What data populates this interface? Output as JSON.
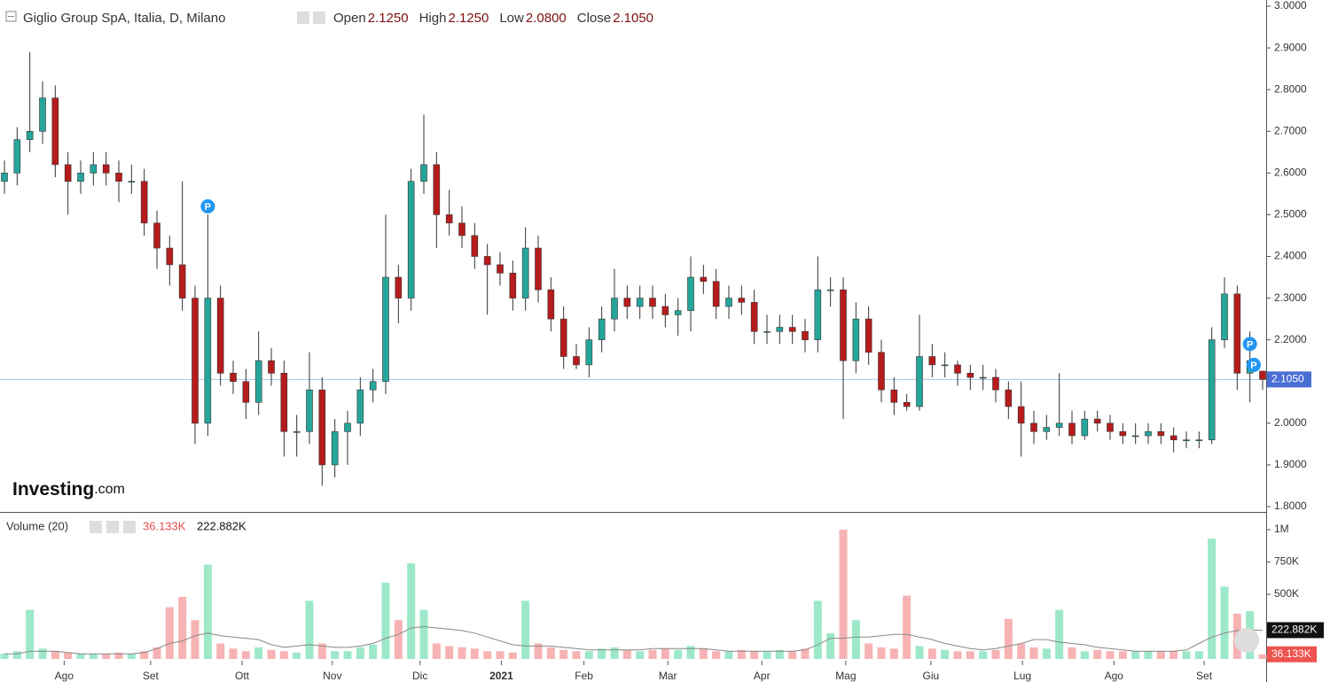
{
  "chart_data": [
    {
      "type": "candlestick",
      "title": "Giglio Group SpA, Italia, D, Milano",
      "ohlc_names": [
        "Open",
        "High",
        "Low",
        "Close"
      ],
      "last_labels": {
        "open": "2.1250",
        "high": "2.1250",
        "low": "2.0800",
        "close": "2.1050"
      },
      "marker_label": "P",
      "logo": "Investing",
      "logo_suffix": ".com",
      "up_color": "#26a69a",
      "down_color": "#b71c1c",
      "xlim": [
        0,
        99
      ],
      "xticks": [
        {
          "value": 4.7,
          "label": "Ago"
        },
        {
          "value": 11.5,
          "label": "Set"
        },
        {
          "value": 18.7,
          "label": "Ott"
        },
        {
          "value": 25.8,
          "label": "Nov"
        },
        {
          "value": 32.7,
          "label": "Dic"
        },
        {
          "value": 39.1,
          "label": "2021"
        },
        {
          "value": 45.6,
          "label": "Feb"
        },
        {
          "value": 52.2,
          "label": "Mar"
        },
        {
          "value": 59.6,
          "label": "Apr"
        },
        {
          "value": 66.2,
          "label": "Mag"
        },
        {
          "value": 72.9,
          "label": "Giu"
        },
        {
          "value": 80.1,
          "label": "Lug"
        },
        {
          "value": 87.3,
          "label": "Ago"
        },
        {
          "value": 94.4,
          "label": "Set"
        }
      ],
      "ylim": [
        1.8,
        3.0
      ],
      "yticks": [
        {
          "value": 1.8,
          "label": "1.8000"
        },
        {
          "value": 1.9,
          "label": "1.9000"
        },
        {
          "value": 2.0,
          "label": "2.0000"
        },
        {
          "value": 2.1,
          "label": "2.1000"
        },
        {
          "value": 2.2,
          "label": "2.2000"
        },
        {
          "value": 2.3,
          "label": "2.3000"
        },
        {
          "value": 2.4,
          "label": "2.4000"
        },
        {
          "value": 2.5,
          "label": "2.5000"
        },
        {
          "value": 2.6,
          "label": "2.6000"
        },
        {
          "value": 2.7,
          "label": "2.7000"
        },
        {
          "value": 2.8,
          "label": "2.8000"
        },
        {
          "value": 2.9,
          "label": "2.9000"
        },
        {
          "value": 3.0,
          "label": "3.0000"
        }
      ],
      "open": [
        2.58,
        2.6,
        2.68,
        2.7,
        2.78,
        2.62,
        2.58,
        2.6,
        2.62,
        2.6,
        2.58,
        2.58,
        2.48,
        2.42,
        2.38,
        2.3,
        2.0,
        2.3,
        2.12,
        2.1,
        2.05,
        2.15,
        2.12,
        1.98,
        1.98,
        2.08,
        1.9,
        1.98,
        2.0,
        2.08,
        2.1,
        2.35,
        2.3,
        2.58,
        2.62,
        2.5,
        2.48,
        2.45,
        2.4,
        2.38,
        2.36,
        2.3,
        2.42,
        2.32,
        2.25,
        2.16,
        2.14,
        2.2,
        2.25,
        2.3,
        2.28,
        2.3,
        2.28,
        2.26,
        2.27,
        2.35,
        2.34,
        2.28,
        2.3,
        2.29,
        2.22,
        2.22,
        2.23,
        2.22,
        2.2,
        2.32,
        2.32,
        2.15,
        2.25,
        2.17,
        2.08,
        2.05,
        2.04,
        2.16,
        2.14,
        2.14,
        2.12,
        2.11,
        2.11,
        2.08,
        2.04,
        2.0,
        1.98,
        1.99,
        2.0,
        1.97,
        2.01,
        2.0,
        1.98,
        1.97,
        1.97,
        1.98,
        1.97,
        1.96,
        1.96,
        1.96,
        2.2,
        2.31,
        2.12,
        2.125
      ],
      "high": [
        2.63,
        2.71,
        2.89,
        2.82,
        2.81,
        2.65,
        2.63,
        2.65,
        2.65,
        2.63,
        2.62,
        2.61,
        2.51,
        2.45,
        2.58,
        2.33,
        2.5,
        2.33,
        2.15,
        2.13,
        2.22,
        2.18,
        2.15,
        2.02,
        2.17,
        2.11,
        2.01,
        2.03,
        2.11,
        2.13,
        2.5,
        2.38,
        2.61,
        2.74,
        2.65,
        2.56,
        2.52,
        2.48,
        2.43,
        2.41,
        2.39,
        2.47,
        2.45,
        2.35,
        2.28,
        2.19,
        2.23,
        2.28,
        2.37,
        2.33,
        2.33,
        2.33,
        2.31,
        2.3,
        2.4,
        2.38,
        2.37,
        2.33,
        2.33,
        2.32,
        2.26,
        2.26,
        2.26,
        2.25,
        2.4,
        2.35,
        2.35,
        2.29,
        2.28,
        2.2,
        2.11,
        2.07,
        2.26,
        2.19,
        2.17,
        2.15,
        2.14,
        2.14,
        2.13,
        2.1,
        2.1,
        2.03,
        2.02,
        2.12,
        2.03,
        2.03,
        2.03,
        2.02,
        2.0,
        2.0,
        2.0,
        2.0,
        1.99,
        1.98,
        1.98,
        2.23,
        2.35,
        2.33,
        2.22,
        2.125
      ],
      "low": [
        2.55,
        2.57,
        2.65,
        2.67,
        2.59,
        2.5,
        2.55,
        2.57,
        2.57,
        2.53,
        2.55,
        2.45,
        2.37,
        2.33,
        2.27,
        1.95,
        1.97,
        2.09,
        2.07,
        2.01,
        2.02,
        2.09,
        1.92,
        1.92,
        1.95,
        1.85,
        1.87,
        1.9,
        1.97,
        2.05,
        2.07,
        2.24,
        2.27,
        2.55,
        2.42,
        2.45,
        2.42,
        2.37,
        2.26,
        2.33,
        2.27,
        2.27,
        2.29,
        2.22,
        2.13,
        2.13,
        2.11,
        2.17,
        2.22,
        2.25,
        2.25,
        2.25,
        2.23,
        2.21,
        2.22,
        2.31,
        2.25,
        2.25,
        2.26,
        2.19,
        2.19,
        2.19,
        2.19,
        2.17,
        2.17,
        2.28,
        2.01,
        2.12,
        2.14,
        2.05,
        2.02,
        2.03,
        2.03,
        2.11,
        2.11,
        2.09,
        2.08,
        2.08,
        2.05,
        2.01,
        1.92,
        1.95,
        1.96,
        1.97,
        1.95,
        1.96,
        1.98,
        1.96,
        1.95,
        1.95,
        1.95,
        1.95,
        1.93,
        1.94,
        1.94,
        1.95,
        2.18,
        2.08,
        2.05,
        2.08
      ],
      "close": [
        2.6,
        2.68,
        2.7,
        2.78,
        2.62,
        2.58,
        2.6,
        2.62,
        2.6,
        2.58,
        2.58,
        2.48,
        2.42,
        2.38,
        2.3,
        2.0,
        2.3,
        2.12,
        2.1,
        2.05,
        2.15,
        2.12,
        1.98,
        1.98,
        2.08,
        1.9,
        1.98,
        2.0,
        2.08,
        2.1,
        2.35,
        2.3,
        2.58,
        2.62,
        2.5,
        2.48,
        2.45,
        2.4,
        2.38,
        2.36,
        2.3,
        2.42,
        2.32,
        2.25,
        2.16,
        2.14,
        2.2,
        2.25,
        2.3,
        2.28,
        2.3,
        2.28,
        2.26,
        2.27,
        2.35,
        2.34,
        2.28,
        2.3,
        2.29,
        2.22,
        2.22,
        2.23,
        2.22,
        2.2,
        2.32,
        2.32,
        2.15,
        2.25,
        2.17,
        2.08,
        2.05,
        2.04,
        2.16,
        2.14,
        2.14,
        2.12,
        2.11,
        2.11,
        2.08,
        2.04,
        2.0,
        1.98,
        1.99,
        2.0,
        1.97,
        2.01,
        2.0,
        1.98,
        1.97,
        1.97,
        1.98,
        1.97,
        1.96,
        1.96,
        1.96,
        2.2,
        2.31,
        2.12,
        2.15,
        2.105
      ],
      "markers": [
        16,
        98,
        98.3
      ],
      "marker_prices": [
        2.52,
        2.19,
        2.14
      ]
    },
    {
      "type": "bar",
      "title": "Volume (20)",
      "up_color": "#9de8c8",
      "down_color": "#f7b3b3",
      "ma_color": "#888888",
      "ylim": [
        0,
        1000
      ],
      "yticks": [
        {
          "value": 500,
          "label": "500K"
        },
        {
          "value": 750,
          "label": "750K"
        },
        {
          "value": 1000,
          "label": "1M"
        }
      ],
      "values": [
        40,
        60,
        380,
        80,
        60,
        50,
        40,
        40,
        40,
        50,
        40,
        60,
        90,
        400,
        480,
        300,
        730,
        120,
        80,
        60,
        90,
        70,
        60,
        50,
        450,
        120,
        60,
        60,
        90,
        110,
        590,
        300,
        740,
        380,
        120,
        100,
        90,
        80,
        60,
        60,
        50,
        450,
        120,
        90,
        70,
        60,
        60,
        80,
        90,
        70,
        60,
        70,
        80,
        70,
        100,
        80,
        60,
        60,
        70,
        60,
        60,
        70,
        60,
        80,
        450,
        200,
        1000,
        300,
        120,
        90,
        80,
        490,
        100,
        80,
        70,
        60,
        60,
        60,
        70,
        310,
        120,
        90,
        80,
        380,
        90,
        60,
        70,
        60,
        60,
        60,
        60,
        60,
        60,
        60,
        60,
        930,
        560,
        350,
        370,
        36.133
      ],
      "value_labels": {
        "99": "36.133K"
      },
      "ma_values": [
        40,
        40,
        60,
        60,
        60,
        50,
        40,
        40,
        40,
        40,
        40,
        50,
        80,
        120,
        140,
        180,
        200,
        180,
        170,
        160,
        150,
        110,
        90,
        100,
        110,
        100,
        90,
        90,
        100,
        120,
        160,
        190,
        240,
        250,
        240,
        230,
        220,
        200,
        170,
        140,
        110,
        100,
        100,
        100,
        90,
        80,
        70,
        70,
        70,
        70,
        70,
        80,
        80,
        80,
        80,
        80,
        70,
        60,
        60,
        60,
        60,
        60,
        60,
        70,
        110,
        160,
        160,
        170,
        170,
        180,
        190,
        190,
        170,
        150,
        120,
        100,
        80,
        70,
        80,
        100,
        120,
        150,
        150,
        130,
        120,
        110,
        90,
        80,
        70,
        60,
        60,
        60,
        60,
        70,
        120,
        170,
        200,
        220,
        222.882,
        222.882
      ],
      "ma_label": "222.882K"
    }
  ]
}
